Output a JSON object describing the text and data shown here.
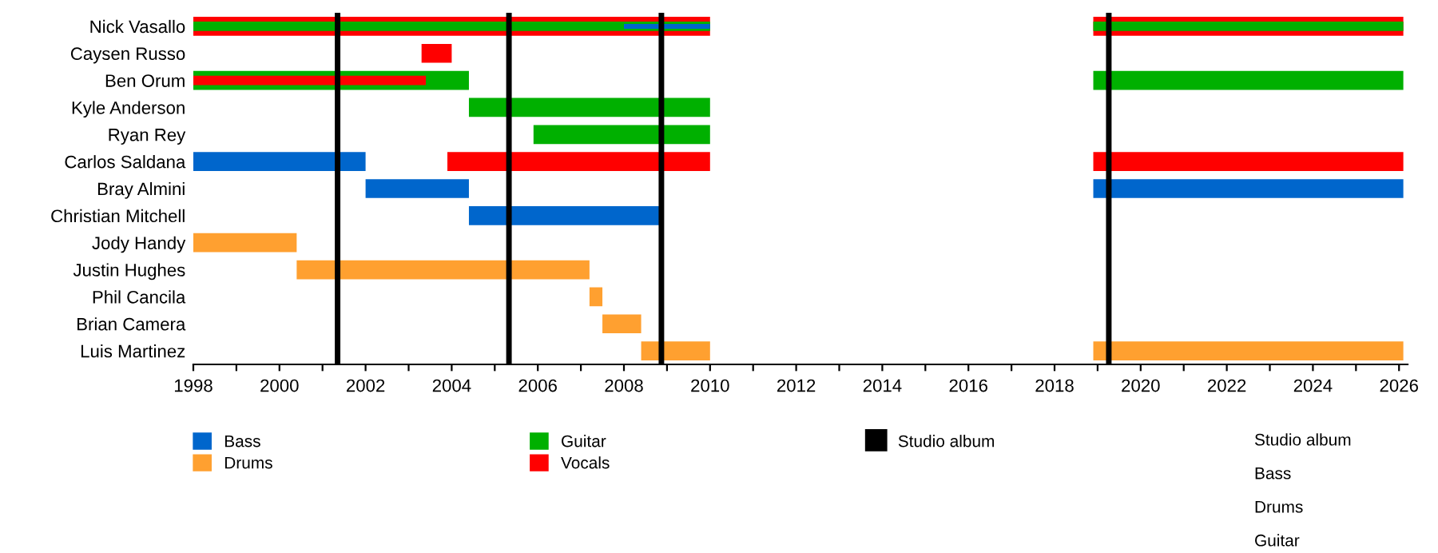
{
  "chart_data": {
    "type": "bar",
    "orientation": "horizontal",
    "categories": [
      "Nick Vasallo",
      "Caysen Russo",
      "Ben Orum",
      "Kyle Anderson",
      "Ryan Rey",
      "Carlos Saldana",
      "Bray Almini",
      "Christian Mitchell",
      "Jody Handy",
      "Justin Hughes",
      "Phil Cancila",
      "Brian Camera",
      "Luis Martinez"
    ],
    "series": [
      {
        "color": "#ff0000",
        "base": [
          1998,
          null,
          null,
          null,
          null,
          null,
          null,
          null,
          null,
          null,
          null,
          null,
          null
        ],
        "values": [
          12,
          null,
          null,
          null,
          null,
          null,
          null,
          null,
          null,
          null,
          null,
          null,
          null
        ]
      },
      {
        "color": "#ff0000",
        "base": [
          2018.9,
          null,
          null,
          null,
          null,
          2018.9,
          null,
          null,
          null,
          null,
          null,
          null,
          null
        ],
        "values": [
          7.2,
          null,
          null,
          null,
          null,
          7.2,
          null,
          null,
          null,
          null,
          null,
          null,
          null
        ]
      },
      {
        "name": "Bass",
        "color": "#0066cc",
        "base": [
          null,
          null,
          null,
          null,
          null,
          1998,
          2002,
          2004.4,
          null,
          null,
          null,
          null,
          null
        ],
        "values": [
          null,
          null,
          null,
          null,
          null,
          4,
          2.4,
          4.5,
          null,
          null,
          null,
          null,
          null
        ]
      },
      {
        "color": "#0066cc",
        "base": [
          null,
          null,
          null,
          null,
          null,
          null,
          2018.9,
          null,
          null,
          null,
          null,
          null,
          null
        ],
        "values": [
          null,
          null,
          null,
          null,
          null,
          null,
          7.2,
          null,
          null,
          null,
          null,
          null,
          null
        ]
      },
      {
        "name": "Drums",
        "color": "#ffa030",
        "base": [
          null,
          null,
          null,
          null,
          null,
          null,
          null,
          null,
          1998,
          2000.4,
          2007.2,
          2007.5,
          2008.4
        ],
        "values": [
          null,
          null,
          null,
          null,
          null,
          null,
          null,
          null,
          2.4,
          6.8,
          0.3,
          0.9,
          1.6
        ]
      },
      {
        "color": "#ffa030",
        "base": [
          null,
          null,
          null,
          null,
          null,
          null,
          null,
          null,
          null,
          null,
          null,
          null,
          2018.9
        ],
        "values": [
          null,
          null,
          null,
          null,
          null,
          null,
          null,
          null,
          null,
          null,
          null,
          null,
          7.2
        ]
      },
      {
        "name": "Guitar",
        "color": "#00b000",
        "base": [
          1998,
          null,
          1998,
          2004.4,
          2005.9,
          null,
          null,
          null,
          null,
          null,
          null,
          null,
          null
        ],
        "values": [
          12,
          null,
          6.4,
          5.6,
          4.1,
          null,
          null,
          null,
          null,
          null,
          null,
          null,
          null
        ]
      },
      {
        "color": "#00b000",
        "base": [
          2018.9,
          null,
          2018.9,
          null,
          null,
          null,
          null,
          null,
          null,
          null,
          null,
          null,
          null
        ],
        "values": [
          7.2,
          null,
          7.2,
          null,
          null,
          null,
          null,
          null,
          null,
          null,
          null,
          null,
          null
        ]
      },
      {
        "name": "Vocals",
        "color": "#ff0000",
        "base": [
          null,
          2003.3,
          1998,
          null,
          null,
          2003.9,
          null,
          null,
          null,
          null,
          null,
          null,
          null
        ],
        "values": [
          null,
          0.7,
          5.4,
          null,
          null,
          6.1,
          null,
          null,
          null,
          null,
          null,
          null,
          null
        ]
      },
      {
        "color": "#0066cc",
        "base": [
          2008,
          null,
          null,
          null,
          null,
          null,
          null,
          null,
          null,
          null,
          null,
          null,
          null
        ],
        "values": [
          2,
          null,
          null,
          null,
          null,
          null,
          null,
          null,
          null,
          null,
          null,
          null,
          null
        ]
      }
    ],
    "ref_lines": [
      {
        "axis": "x",
        "value": 2001.35,
        "label": "Studio album",
        "color": "#000000"
      },
      {
        "axis": "x",
        "value": 2005.33,
        "color": "#000000"
      },
      {
        "axis": "x",
        "value": 2008.87,
        "color": "#000000"
      },
      {
        "axis": "x",
        "value": 2019.26,
        "color": "#000000"
      }
    ],
    "xlim": [
      1998,
      2026.2
    ],
    "xticks": [
      1998,
      {
        "value": 1999,
        "label": null
      },
      2000,
      {
        "value": 2001,
        "label": null
      },
      2002,
      {
        "value": 2003,
        "label": null
      },
      2004,
      {
        "value": 2005,
        "label": null
      },
      2006,
      {
        "value": 2007,
        "label": null
      },
      2008,
      {
        "value": 2009,
        "label": null
      },
      2010,
      {
        "value": 2011,
        "label": null
      },
      2012,
      {
        "value": 2013,
        "label": null
      },
      2014,
      {
        "value": 2015,
        "label": null
      },
      2016,
      {
        "value": 2017,
        "label": null
      },
      2018,
      {
        "value": 2019,
        "label": null
      },
      2020,
      {
        "value": 2021,
        "label": null
      },
      2022,
      {
        "value": 2023,
        "label": null
      },
      2024,
      {
        "value": 2025,
        "label": null
      },
      2026
    ],
    "grid": false,
    "legend": "bottom",
    "annotations": [
      "Studio album",
      "Bass",
      "Drums",
      "Guitar"
    ]
  }
}
